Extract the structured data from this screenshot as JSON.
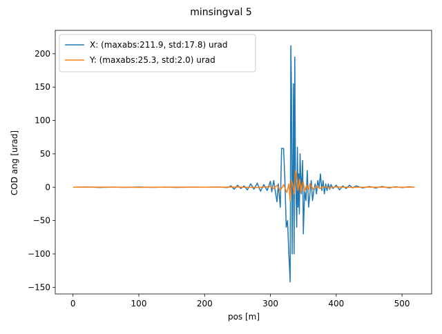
{
  "chart_data": {
    "type": "line",
    "title": "minsingval 5",
    "xlabel": "pos [m]",
    "ylabel": "COD ang [urad]",
    "xlim": [
      -27,
      545
    ],
    "ylim": [
      -160,
      235
    ],
    "xticks": [
      0,
      100,
      200,
      300,
      400,
      500
    ],
    "yticks": [
      -150,
      -100,
      -50,
      0,
      50,
      100,
      150,
      200
    ],
    "grid": false,
    "legend_position": "upper-left",
    "series": [
      {
        "name": "X: (maxabs:211.9, std:17.8) urad",
        "color": "#1f77b4",
        "x": [
          0,
          20,
          40,
          60,
          80,
          100,
          120,
          140,
          160,
          180,
          200,
          220,
          235,
          240,
          245,
          250,
          255,
          260,
          265,
          270,
          275,
          280,
          285,
          290,
          295,
          300,
          302,
          305,
          308,
          310,
          312,
          315,
          317,
          320,
          322,
          324,
          326,
          328,
          330,
          331,
          332,
          333,
          334,
          335,
          336,
          337,
          338,
          339,
          340,
          341,
          342,
          343,
          344,
          345,
          347,
          349,
          350,
          352,
          354,
          356,
          358,
          360,
          362,
          364,
          366,
          368,
          370,
          372,
          374,
          376,
          378,
          380,
          382,
          384,
          386,
          388,
          390,
          392,
          395,
          400,
          405,
          410,
          415,
          420,
          425,
          430,
          440,
          450,
          460,
          470,
          480,
          490,
          500,
          510,
          519
        ],
        "values": [
          0,
          0.3,
          -0.4,
          0.2,
          -0.3,
          0.3,
          -0.2,
          0.2,
          -0.3,
          0.2,
          0,
          0.3,
          -0.5,
          2,
          -3,
          3,
          -2,
          2,
          -4,
          5,
          -3,
          6,
          -6,
          4,
          -5,
          9,
          -7,
          10,
          -10,
          -22,
          5,
          -30,
          58,
          58,
          10,
          -60,
          -50,
          -100,
          -142,
          211.9,
          150,
          -100,
          10,
          155,
          -100,
          195,
          40,
          -20,
          -60,
          60,
          -30,
          20,
          -40,
          50,
          -10,
          40,
          -70,
          -5,
          -20,
          25,
          -30,
          -10,
          10,
          -20,
          -5,
          5,
          -10,
          10,
          0,
          20,
          -5,
          10,
          -10,
          5,
          -5,
          5,
          -3,
          4,
          -2,
          3,
          -4,
          2,
          -2,
          3,
          -1,
          2,
          -1,
          1,
          -1,
          1,
          -1,
          0.5,
          -0.5,
          0.5,
          0
        ]
      },
      {
        "name": "Y: (maxabs:25.3, std:2.0) urad",
        "color": "#ff7f0e",
        "x": [
          0,
          50,
          100,
          150,
          200,
          250,
          280,
          300,
          305,
          310,
          315,
          320,
          325,
          328,
          330,
          332,
          334,
          336,
          338,
          340,
          342,
          344,
          346,
          348,
          350,
          352,
          355,
          358,
          360,
          365,
          370,
          375,
          380,
          390,
          400,
          420,
          450,
          480,
          519
        ],
        "values": [
          0,
          0.2,
          -0.2,
          0.2,
          0,
          0.3,
          -0.5,
          1,
          -2,
          3,
          -5,
          4,
          -8,
          5,
          -20,
          10,
          3,
          -10,
          25.3,
          15,
          -5,
          12,
          -8,
          4,
          8,
          -6,
          3,
          -4,
          5,
          -3,
          2,
          -2,
          1,
          -1,
          0.5,
          -0.3,
          0.2,
          -0.1,
          0
        ]
      }
    ]
  }
}
